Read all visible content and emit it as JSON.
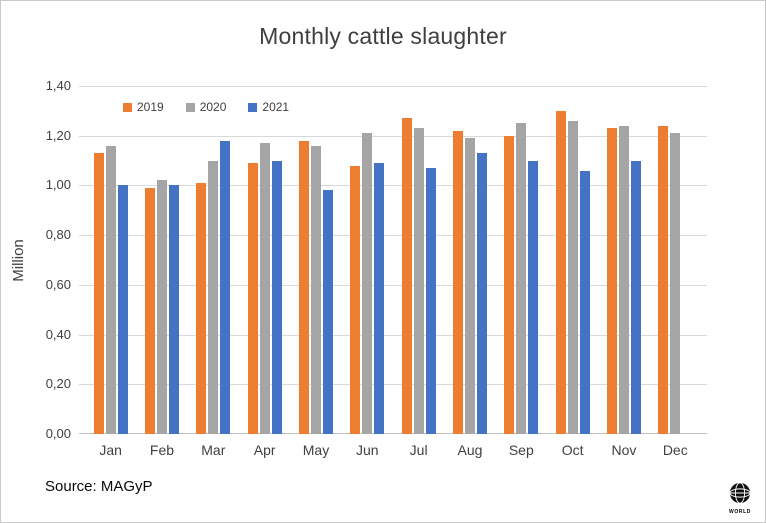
{
  "chart_data": {
    "type": "bar",
    "title": "Monthly cattle slaughter",
    "xlabel": "",
    "ylabel": "Million",
    "ylim": [
      0,
      1.4
    ],
    "ytick_step": 0.2,
    "ytick_labels": [
      "0,00",
      "0,20",
      "0,40",
      "0,60",
      "0,80",
      "1,00",
      "1,20",
      "1,40"
    ],
    "grid": true,
    "grid_color": "#D9D9D9",
    "axis_color": "#BFBFBF",
    "legend_position": "top-left",
    "categories": [
      "Jan",
      "Feb",
      "Mar",
      "Apr",
      "May",
      "Jun",
      "Jul",
      "Aug",
      "Sep",
      "Oct",
      "Nov",
      "Dec"
    ],
    "series": [
      {
        "name": "2019",
        "color": "#ED7D31",
        "values": [
          1.13,
          0.99,
          1.01,
          1.09,
          1.18,
          1.08,
          1.27,
          1.22,
          1.2,
          1.3,
          1.23,
          1.24
        ]
      },
      {
        "name": "2020",
        "color": "#A5A5A5",
        "values": [
          1.16,
          1.02,
          1.1,
          1.17,
          1.16,
          1.21,
          1.23,
          1.19,
          1.25,
          1.26,
          1.24,
          1.21
        ]
      },
      {
        "name": "2021",
        "color": "#4472C4",
        "values": [
          1.0,
          1.0,
          1.18,
          1.1,
          0.98,
          1.09,
          1.07,
          1.13,
          1.1,
          1.06,
          1.1,
          null
        ]
      }
    ]
  },
  "footer": {
    "source": "Source: MAGyP",
    "logo_text": "WORLD"
  }
}
